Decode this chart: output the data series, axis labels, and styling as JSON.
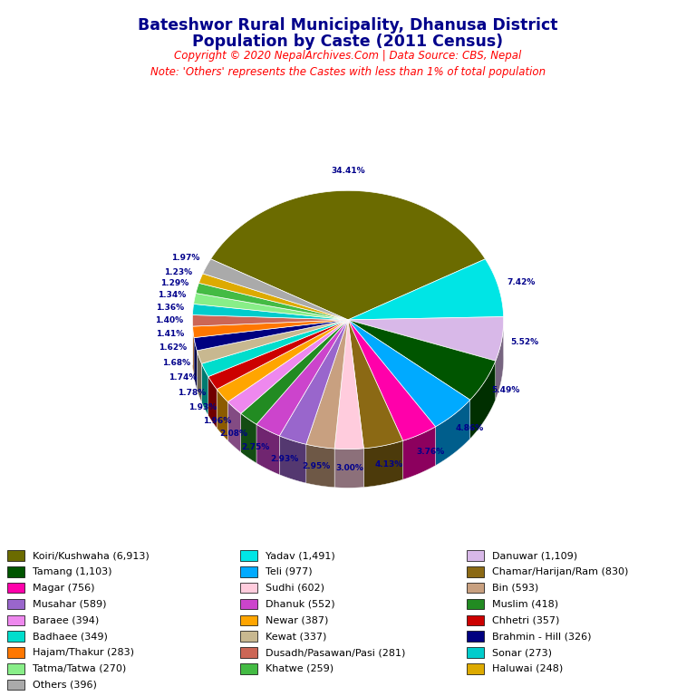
{
  "title_line1": "Bateshwor Rural Municipality, Dhanusa District",
  "title_line2": "Population by Caste (2011 Census)",
  "copyright": "Copyright © 2020 NepalArchives.Com | Data Source: CBS, Nepal",
  "note": "Note: 'Others' represents the Castes with less than 1% of total population",
  "castes": [
    {
      "name": "Koiri/Kushwaha",
      "value": 6913,
      "color": "#6b6b00"
    },
    {
      "name": "Yadav",
      "value": 1491,
      "color": "#00e5e5"
    },
    {
      "name": "Danuwar",
      "value": 1109,
      "color": "#d8b8e8"
    },
    {
      "name": "Tamang",
      "value": 1103,
      "color": "#005500"
    },
    {
      "name": "Teli",
      "value": 977,
      "color": "#00aaff"
    },
    {
      "name": "Magar",
      "value": 756,
      "color": "#ff00aa"
    },
    {
      "name": "Chamar/Harijan/Ram",
      "value": 830,
      "color": "#8B6914"
    },
    {
      "name": "Sudhi",
      "value": 602,
      "color": "#ffccdd"
    },
    {
      "name": "Bin",
      "value": 593,
      "color": "#c8a080"
    },
    {
      "name": "Musahar",
      "value": 589,
      "color": "#9966cc"
    },
    {
      "name": "Dhanuk",
      "value": 552,
      "color": "#cc44cc"
    },
    {
      "name": "Muslim",
      "value": 418,
      "color": "#228B22"
    },
    {
      "name": "Baraee",
      "value": 394,
      "color": "#ee88ee"
    },
    {
      "name": "Newar",
      "value": 387,
      "color": "#FFA500"
    },
    {
      "name": "Chhetri",
      "value": 357,
      "color": "#cc0000"
    },
    {
      "name": "Badhaee",
      "value": 349,
      "color": "#00ddcc"
    },
    {
      "name": "Kewat",
      "value": 337,
      "color": "#c8b890"
    },
    {
      "name": "Brahmin - Hill",
      "value": 326,
      "color": "#000080"
    },
    {
      "name": "Hajam/Thakur",
      "value": 283,
      "color": "#FF7700"
    },
    {
      "name": "Dusadh/Pasawan/Pasi",
      "value": 281,
      "color": "#cc6655"
    },
    {
      "name": "Sonar",
      "value": 273,
      "color": "#00cccc"
    },
    {
      "name": "Tatma/Tatwa",
      "value": 270,
      "color": "#88ee88"
    },
    {
      "name": "Khatwe",
      "value": 259,
      "color": "#44bb44"
    },
    {
      "name": "Haluwai",
      "value": 248,
      "color": "#ddaa00"
    },
    {
      "name": "Others",
      "value": 396,
      "color": "#aaaaaa"
    }
  ],
  "legend_col1": [
    "Koiri/Kushwaha",
    "Tamang",
    "Magar",
    "Musahar",
    "Baraee",
    "Badhaee",
    "Hajam/Thakur",
    "Tatma/Tatwa"
  ],
  "legend_col2": [
    "Yadav",
    "Teli",
    "Sudhi",
    "Dhanuk",
    "Newar",
    "Kewat",
    "Dusadh/Pasawan/Pasi",
    "Khatwe"
  ],
  "legend_col3": [
    "Danuwar",
    "Chamar/Harijan/Ram",
    "Bin",
    "Muslim",
    "Chhetri",
    "Brahmin - Hill",
    "Sonar",
    "Haluwai"
  ]
}
